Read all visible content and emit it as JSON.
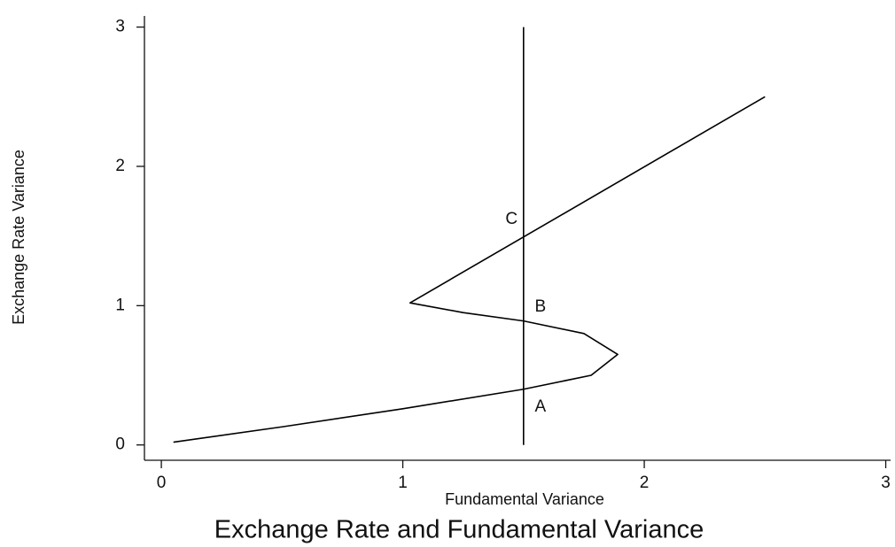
{
  "chart_data": {
    "type": "line",
    "title": "Exchange Rate and Fundamental Variance",
    "x_label": "Fundamental Variance",
    "y_label": "Exchange Rate Variance",
    "series": [
      {
        "color": "#000000",
        "x": [
          0.05,
          0.5,
          1.0,
          1.5,
          1.78,
          1.89,
          1.75,
          1.5,
          1.25,
          1.03,
          2.5
        ],
        "values": [
          0.02,
          0.13,
          0.26,
          0.4,
          0.5,
          0.65,
          0.8,
          0.89,
          0.95,
          1.02,
          2.5
        ]
      },
      {
        "color": "#000000",
        "x": [
          1.5,
          1.5
        ],
        "values": [
          0,
          3
        ]
      }
    ],
    "annotations": [
      {
        "text": "A",
        "x": 1.57,
        "y": 0.27
      },
      {
        "text": "B",
        "x": 1.57,
        "y": 0.99
      },
      {
        "text": "C",
        "x": 1.45,
        "y": 1.62
      }
    ],
    "xlim": [
      -0.07,
      3.02
    ],
    "ylim": [
      -0.11,
      3.08
    ],
    "xticks": [
      0,
      1,
      2,
      3
    ],
    "yticks": [
      0,
      1,
      2,
      3
    ],
    "grid": false
  }
}
